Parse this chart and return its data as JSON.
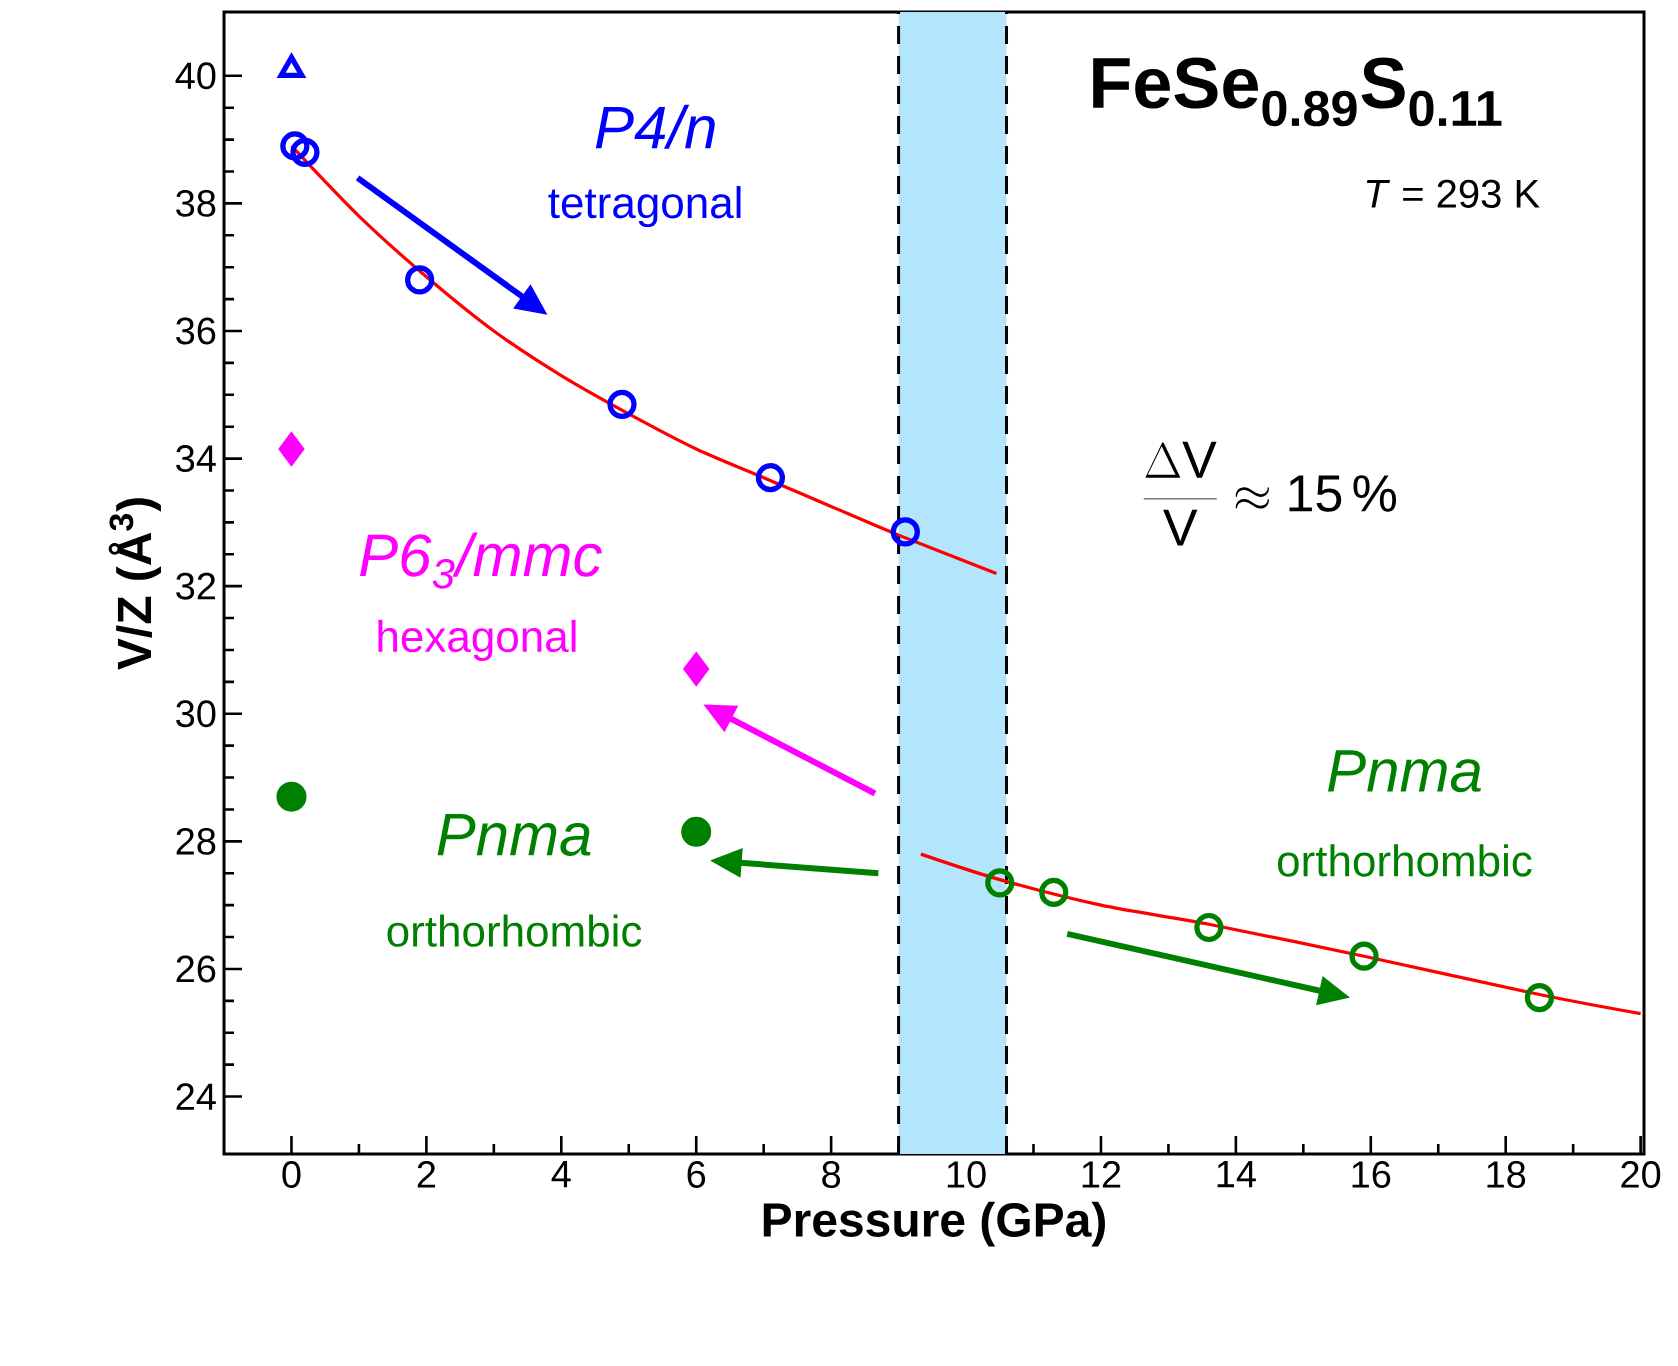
{
  "chart_data": {
    "type": "scatter",
    "title": "FeSe$_{0.89}$S$_{0.11}$",
    "xlabel": "Pressure (GPa)",
    "ylabel": "V/Z (Å$^{3}$)",
    "xlim": [
      -1,
      20.05
    ],
    "ylim": [
      23.1,
      41
    ],
    "xticks": [
      0,
      2,
      4,
      6,
      8,
      10,
      12,
      14,
      16,
      18,
      20
    ],
    "yticks": [
      24,
      26,
      28,
      30,
      32,
      34,
      36,
      38,
      40
    ],
    "grid": false,
    "series": [
      {
        "marker": "triangle",
        "color": "#0000ff",
        "x": [
          0
        ],
        "values": [
          40.1
        ]
      },
      {
        "marker": "circle",
        "color": "#0000ff",
        "x": [
          0.05,
          0.2,
          1.9,
          4.9,
          7.1,
          9.1
        ],
        "values": [
          38.9,
          38.8,
          36.8,
          34.85,
          33.7,
          32.85
        ]
      },
      {
        "marker": "diamond",
        "color": "#ff00ff",
        "x": [
          0,
          6.0
        ],
        "values": [
          34.15,
          30.7
        ]
      },
      {
        "marker": "circle",
        "color": "#008000",
        "x": [
          0,
          6.0
        ],
        "values": [
          28.7,
          28.15
        ]
      },
      {
        "marker": "circle",
        "color": "#008000",
        "x": [
          10.5,
          11.3,
          13.6,
          15.9,
          18.5
        ],
        "values": [
          27.35,
          27.2,
          26.65,
          26.2,
          25.55
        ]
      },
      {
        "type": "line",
        "color": "#ff0000",
        "x": [
          0,
          1,
          2,
          3,
          4,
          5,
          6,
          7,
          8,
          9,
          10.45
        ],
        "values": [
          38.9,
          37.8,
          36.85,
          36.0,
          35.3,
          34.7,
          34.15,
          33.7,
          33.25,
          32.8,
          32.2
        ]
      },
      {
        "type": "line",
        "color": "#ff0000",
        "x": [
          9.33,
          10.5,
          12,
          13.6,
          15.9,
          18.5,
          20
        ],
        "values": [
          27.8,
          27.4,
          27.0,
          26.7,
          26.2,
          25.6,
          25.3
        ]
      }
    ],
    "bands": [
      {
        "axis": "x",
        "from": 9.0,
        "to": 10.6,
        "color": "#b3e5fc"
      }
    ],
    "ref_lines": [
      {
        "axis": "x",
        "value": 9.0,
        "color": "#000000",
        "line_style": "dashed"
      },
      {
        "axis": "x",
        "value": 10.6,
        "color": "#000000",
        "line_style": "dashed"
      }
    ],
    "annotations": [
      "P4/n",
      "tetragonal",
      "P6$_{3}$/mmc",
      "hexagonal",
      "Pnma",
      "orthorhombic",
      "Pnma",
      "orthorhombic",
      "*T* = 293 K",
      "\\frac{\\Delta \\mathrm{V}}{\\mathrm{V}}\\approx\\mathrm{15\\,\\%}"
    ]
  }
}
